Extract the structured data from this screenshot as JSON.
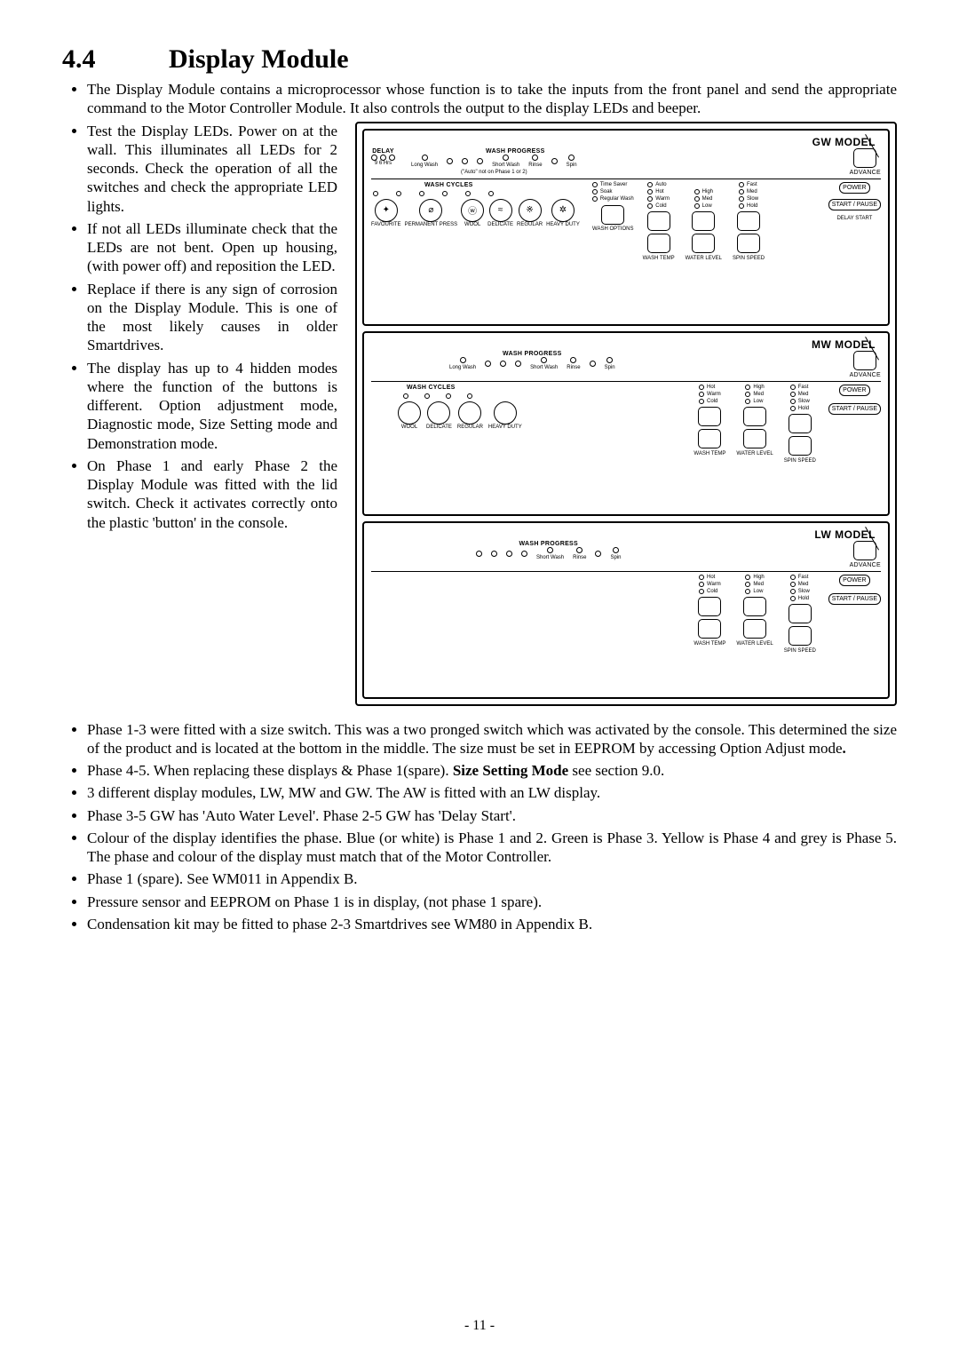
{
  "section": {
    "number": "4.4",
    "title": "Display Module"
  },
  "top_bullet": "The Display Module contains a  microprocessor whose function is to take the inputs from the front panel and send the appropriate command to the Motor Controller Module. It also controls the output to the display LEDs and beeper.",
  "left_bullets": [
    "Test the Display LEDs. Power on at the wall. This illuminates all LEDs for 2 seconds. Check the operation of all the switches and check the appropriate LED lights.",
    "If not all LEDs  illuminate check that the LEDs are not bent. Open up housing, (with power off) and reposition the LED.",
    "Replace if there is any sign of corrosion on the Display Module. This is one of the most likely causes in older Smartdrives.",
    "The display has up to 4 hidden modes where the function of the buttons is different. Option adjustment mode, Diagnostic mode, Size Setting mode and Demonstration mode.",
    "On Phase 1 and  early Phase 2 the Display Module was fitted with the lid switch. Check it activates correctly onto the plastic 'button' in the console."
  ],
  "bottom_bullets": [
    {
      "html": "Phase 1-3 were fitted with a size switch. This was a two pronged switch which was activated by the console. This determined the size of the product and is located at the bottom in the middle. The size must be set in EEPROM by accessing Option Adjust mode<b>.</b>"
    },
    {
      "html": "Phase 4-5. When replacing these displays & Phase 1(spare). <b>Size Setting Mode</b> see section 9.0."
    },
    {
      "html": "3 different display modules, LW, MW and GW. The AW is fitted with an LW display."
    },
    {
      "html": "Phase 3-5 GW has 'Auto Water Level'. Phase 2-5 GW has 'Delay Start'."
    },
    {
      "html": "Colour of the display identifies the phase. Blue (or white) is Phase 1 and 2. Green is Phase 3. Yellow is Phase 4 and grey is Phase 5. The phase and colour of the display must match that of the Motor Controller."
    },
    {
      "html": "Phase 1 (spare). See WM011 in Appendix B."
    },
    {
      "html": "Pressure sensor and EEPROM on Phase 1 is in display, (not phase 1 spare)."
    },
    {
      "html": "Condensation kit may  be fitted to phase 2-3 Smartdrives see WM80 in Appendix B."
    }
  ],
  "page_number": "-  11  -",
  "fig": {
    "models": {
      "gw": "GW MODEL",
      "mw": "MW MODEL",
      "lw": "LW MODEL"
    },
    "labels": {
      "delay": "DELAY",
      "delay_nums": "9   6  Hrs",
      "wash_progress": "WASH PROGRESS",
      "auto_option": "(\"Auto\" not on Phase 1 or 2)",
      "long_wash": "Long\nWash",
      "short_wash": "Short\nWash",
      "rinse": "Rinse",
      "spin": "Spin",
      "advance": "ADVANCE",
      "time_saver": "Time\nSaver",
      "soak": "Soak",
      "regular": "Regular\nWash",
      "auto": "Auto",
      "hot": "Hot",
      "warm": "Warm",
      "cold": "Cold",
      "high": "High",
      "med": "Med",
      "low": "Low",
      "fast": "Fast",
      "slow": "Slow",
      "hold": "Hold",
      "power": "POWER",
      "start_pause": "START /\nPAUSE",
      "delay_start": "DELAY\nSTART",
      "wash_cycles": "WASH CYCLES",
      "fav": "FAVOURITE",
      "perm": "PERMANENT\nPRESS",
      "wool": "WOOL",
      "delicate": "DELICATE",
      "regular_c": "REGULAR",
      "heavy": "HEAVY\nDUTY",
      "wash_options": "WASH\nOPTIONS",
      "wash_temp": "WASH\nTEMP",
      "water_level": "WATER\nLEVEL",
      "spin_speed": "SPIN\nSPEED"
    }
  }
}
